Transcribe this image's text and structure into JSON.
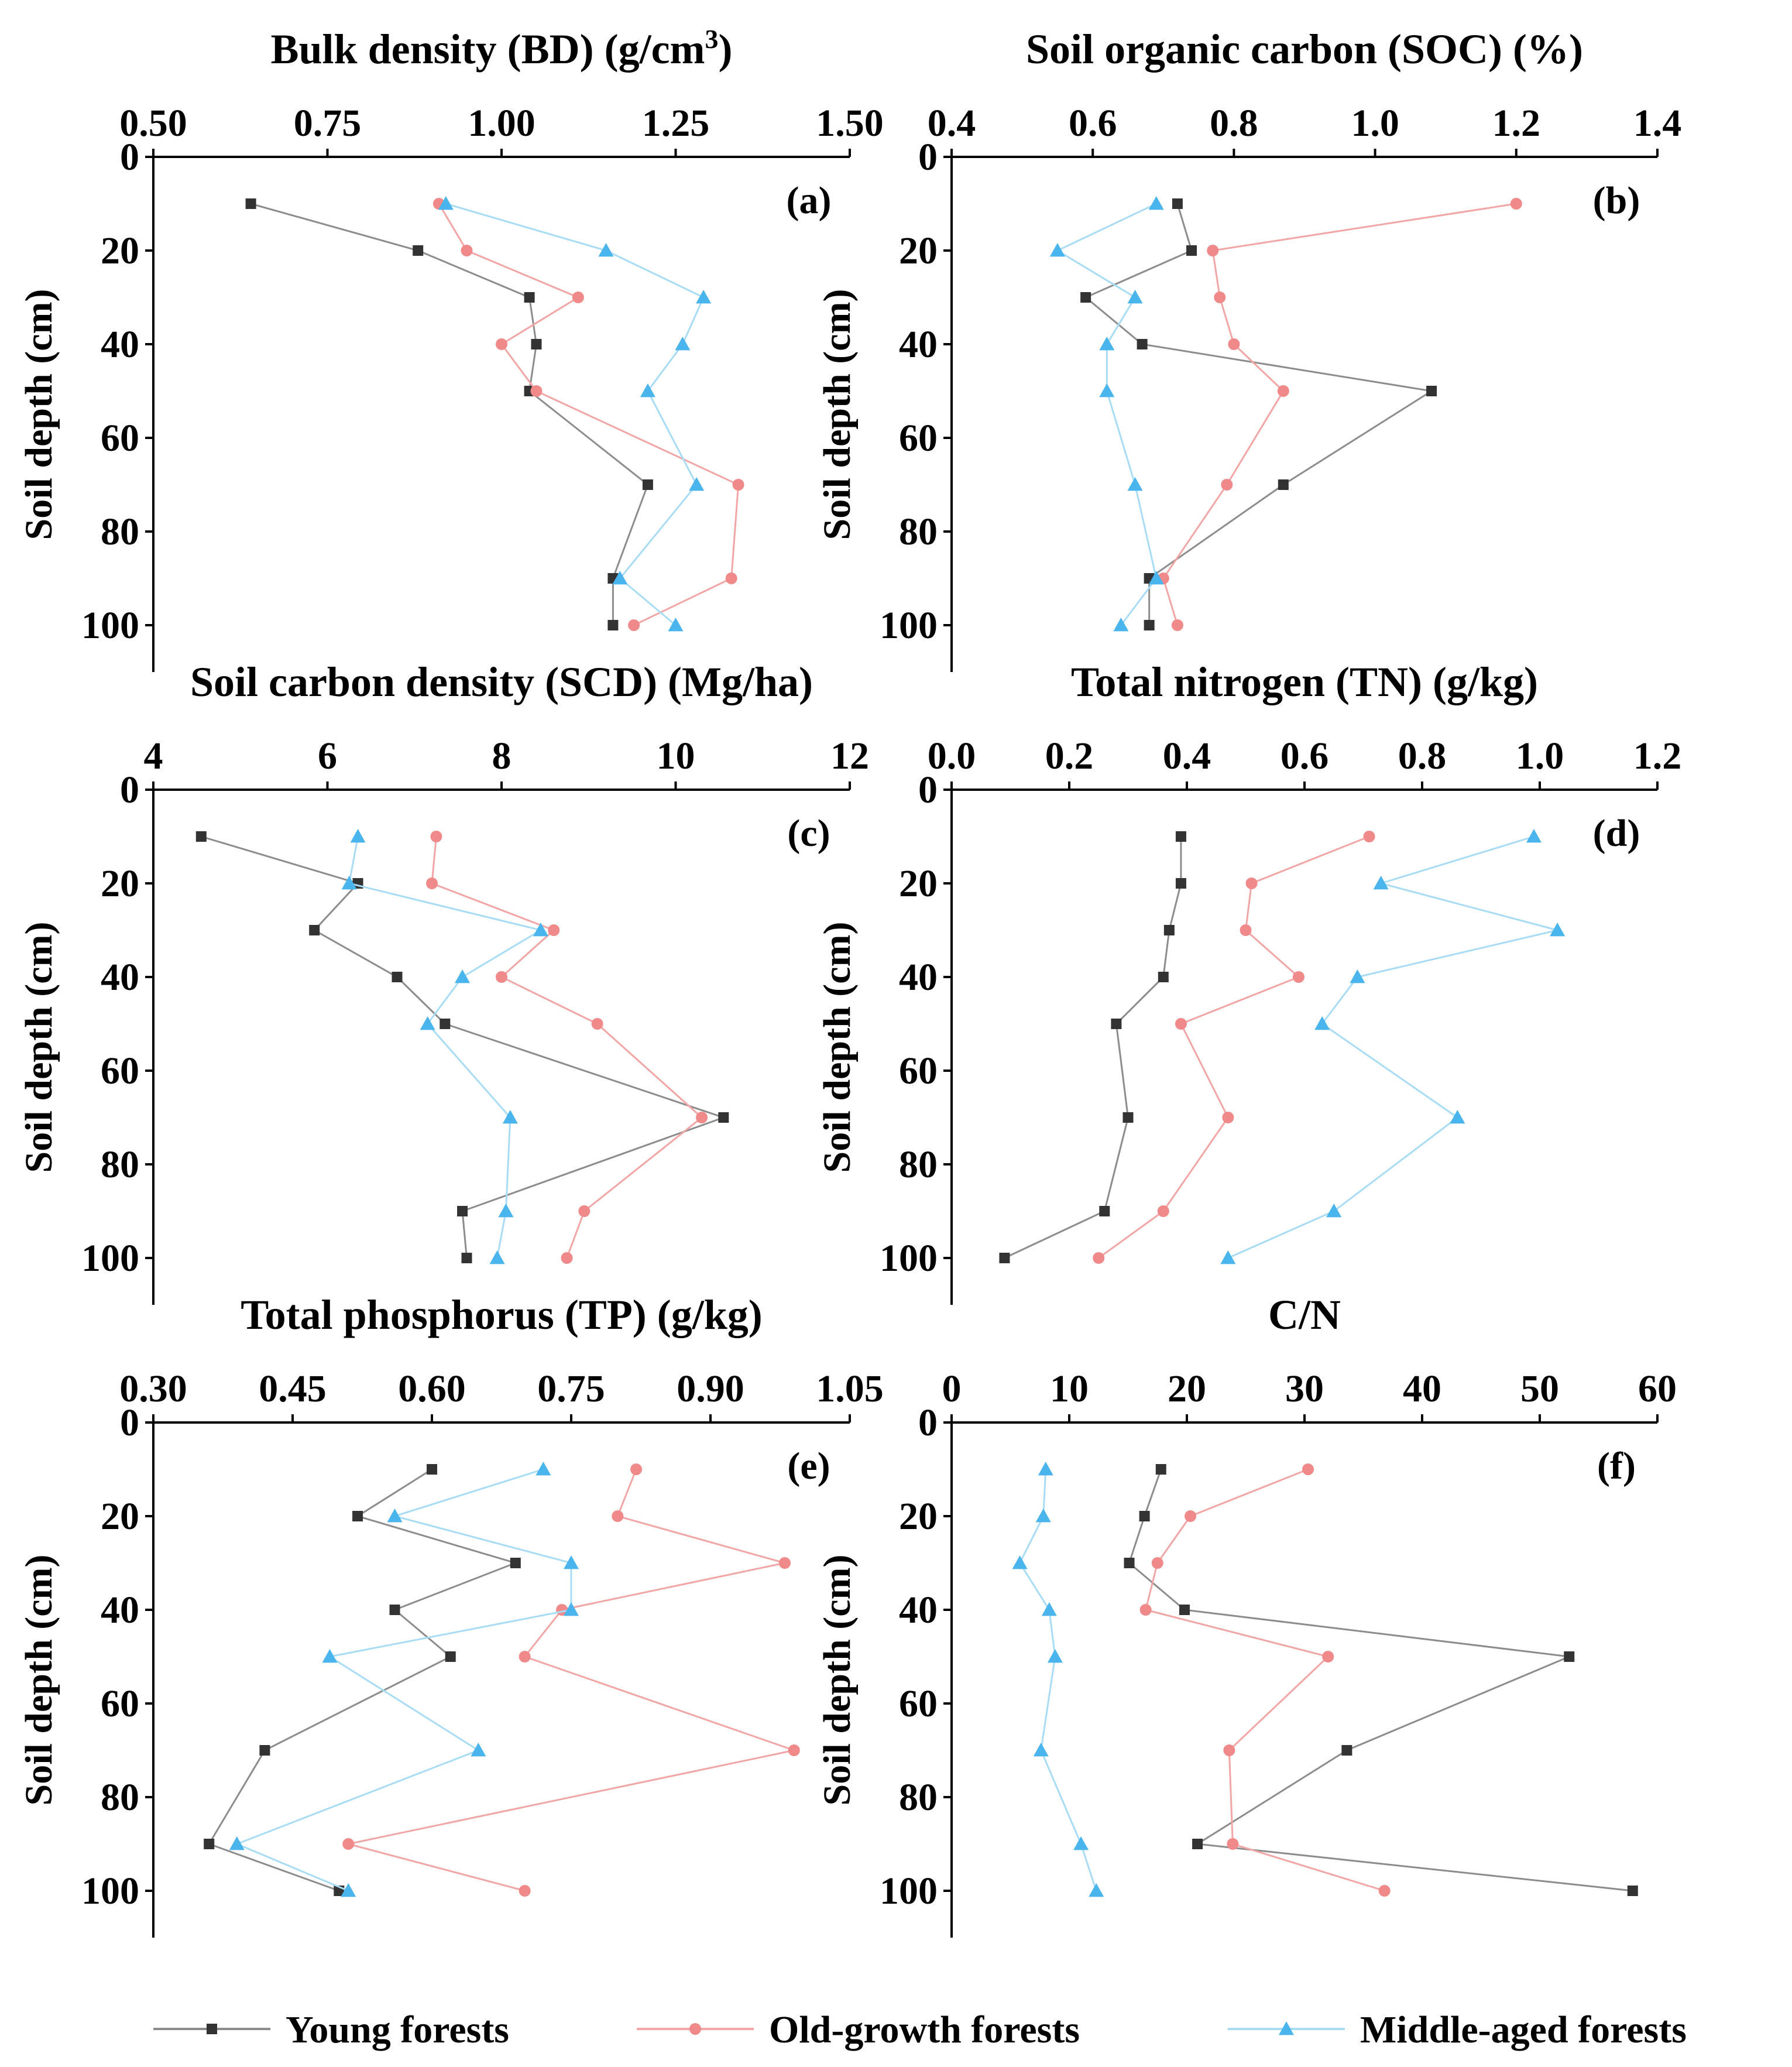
{
  "legend": [
    {
      "key": "young",
      "label": "Young forests",
      "color": "#8c8c8c",
      "marker_color": "#333333",
      "marker": "square"
    },
    {
      "key": "old",
      "label": "Old-growth forests",
      "color": "#f2a5a5",
      "marker_color": "#f08a8a",
      "marker": "circle"
    },
    {
      "key": "middle",
      "label": "Middle-aged forests",
      "color": "#a8dcf5",
      "marker_color": "#4ab4ec",
      "marker": "triangle"
    }
  ],
  "chart_data": [
    {
      "id": "a",
      "type": "line",
      "letter": "(a)",
      "title": "Bulk density (BD) (g/cm",
      "title_sup": "3",
      "title_suffix": ")",
      "ylabel": "Soil depth (cm)",
      "xlim": [
        0.5,
        1.5
      ],
      "ylim": [
        0,
        110
      ],
      "xticks": [
        "0.50",
        "0.75",
        "1.00",
        "1.25",
        "1.50"
      ],
      "xtick_values": [
        0.5,
        0.75,
        1.0,
        1.25,
        1.5
      ],
      "yticks": [
        "0",
        "20",
        "40",
        "60",
        "80",
        "100"
      ],
      "ytick_values": [
        0,
        20,
        40,
        60,
        80,
        100
      ],
      "depth": [
        10,
        20,
        30,
        40,
        50,
        70,
        90,
        100
      ],
      "series": [
        {
          "key": "young",
          "x": [
            0.64,
            0.88,
            1.04,
            1.05,
            1.04,
            1.21,
            1.16,
            1.16
          ]
        },
        {
          "key": "old",
          "x": [
            0.91,
            0.95,
            1.11,
            1.0,
            1.05,
            1.34,
            1.33,
            1.19
          ]
        },
        {
          "key": "middle",
          "x": [
            0.92,
            1.15,
            1.29,
            1.26,
            1.21,
            1.28,
            1.17,
            1.25
          ]
        }
      ]
    },
    {
      "id": "b",
      "type": "line",
      "letter": "(b)",
      "title": "Soil organic carbon (SOC) (%)",
      "ylabel": "Soil depth (cm)",
      "xlim": [
        0.4,
        1.4
      ],
      "ylim": [
        0,
        110
      ],
      "xticks": [
        "0.4",
        "0.6",
        "0.8",
        "1.0",
        "1.2",
        "1.4"
      ],
      "xtick_values": [
        0.4,
        0.6,
        0.8,
        1.0,
        1.2,
        1.4
      ],
      "yticks": [
        "0",
        "20",
        "40",
        "60",
        "80",
        "100"
      ],
      "ytick_values": [
        0,
        20,
        40,
        60,
        80,
        100
      ],
      "depth": [
        10,
        20,
        30,
        40,
        50,
        70,
        90,
        100
      ],
      "series": [
        {
          "key": "young",
          "x": [
            0.72,
            0.74,
            0.59,
            0.67,
            1.08,
            0.87,
            0.68,
            0.68
          ]
        },
        {
          "key": "old",
          "x": [
            1.2,
            0.77,
            0.78,
            0.8,
            0.87,
            0.79,
            0.7,
            0.72
          ]
        },
        {
          "key": "middle",
          "x": [
            0.69,
            0.55,
            0.66,
            0.62,
            0.62,
            0.66,
            0.69,
            0.64
          ]
        }
      ]
    },
    {
      "id": "c",
      "type": "line",
      "letter": "(c)",
      "title": "Soil carbon density (SCD) (Mg/ha)",
      "ylabel": "Soil depth (cm)",
      "xlim": [
        4,
        12
      ],
      "ylim": [
        0,
        110
      ],
      "xticks": [
        "4",
        "6",
        "8",
        "10",
        "12"
      ],
      "xtick_values": [
        4,
        6,
        8,
        10,
        12
      ],
      "yticks": [
        "0",
        "20",
        "40",
        "60",
        "80",
        "100"
      ],
      "ytick_values": [
        0,
        20,
        40,
        60,
        80,
        100
      ],
      "depth": [
        10,
        20,
        30,
        40,
        50,
        70,
        90,
        100
      ],
      "series": [
        {
          "key": "young",
          "x": [
            4.55,
            6.35,
            5.85,
            6.8,
            7.35,
            10.55,
            7.55,
            7.6
          ]
        },
        {
          "key": "old",
          "x": [
            7.25,
            7.2,
            8.6,
            8.0,
            9.1,
            10.3,
            8.95,
            8.75
          ]
        },
        {
          "key": "middle",
          "x": [
            6.35,
            6.25,
            8.45,
            7.55,
            7.15,
            8.1,
            8.05,
            7.95
          ]
        }
      ]
    },
    {
      "id": "d",
      "type": "line",
      "letter": "(d)",
      "title": "Total nitrogen (TN) (g/kg)",
      "ylabel": "Soil depth (cm)",
      "xlim": [
        0,
        1.2
      ],
      "ylim": [
        0,
        110
      ],
      "xticks": [
        "0.0",
        "0.2",
        "0.4",
        "0.6",
        "0.8",
        "1.0",
        "1.2"
      ],
      "xtick_values": [
        0,
        0.2,
        0.4,
        0.6,
        0.8,
        1.0,
        1.2
      ],
      "yticks": [
        "0",
        "20",
        "40",
        "60",
        "80",
        "100"
      ],
      "ytick_values": [
        0,
        20,
        40,
        60,
        80,
        100
      ],
      "depth": [
        10,
        20,
        30,
        40,
        50,
        70,
        90,
        100
      ],
      "series": [
        {
          "key": "young",
          "x": [
            0.39,
            0.39,
            0.37,
            0.36,
            0.28,
            0.3,
            0.26,
            0.09
          ]
        },
        {
          "key": "old",
          "x": [
            0.71,
            0.51,
            0.5,
            0.59,
            0.39,
            0.47,
            0.36,
            0.25
          ]
        },
        {
          "key": "middle",
          "x": [
            0.99,
            0.73,
            1.03,
            0.69,
            0.63,
            0.86,
            0.65,
            0.47
          ]
        }
      ]
    },
    {
      "id": "e",
      "type": "line",
      "letter": "(e)",
      "title": "Total phosphorus (TP) (g/kg)",
      "ylabel": "Soil depth (cm)",
      "xlim": [
        0.3,
        1.05
      ],
      "ylim": [
        0,
        110
      ],
      "xticks": [
        "0.30",
        "0.45",
        "0.60",
        "0.75",
        "0.90",
        "1.05"
      ],
      "xtick_values": [
        0.3,
        0.45,
        0.6,
        0.75,
        0.9,
        1.05
      ],
      "yticks": [
        "0",
        "20",
        "40",
        "60",
        "80",
        "100"
      ],
      "ytick_values": [
        0,
        20,
        40,
        60,
        80,
        100
      ],
      "depth": [
        10,
        20,
        30,
        40,
        50,
        70,
        90,
        100
      ],
      "series": [
        {
          "key": "young",
          "x": [
            0.6,
            0.52,
            0.69,
            0.56,
            0.62,
            0.42,
            0.36,
            0.5
          ]
        },
        {
          "key": "old",
          "x": [
            0.82,
            0.8,
            0.98,
            0.74,
            0.7,
            0.99,
            0.51,
            0.7
          ]
        },
        {
          "key": "middle",
          "x": [
            0.72,
            0.56,
            0.75,
            0.75,
            0.49,
            0.65,
            0.39,
            0.51
          ]
        }
      ]
    },
    {
      "id": "f",
      "type": "line",
      "letter": "(f)",
      "title": "C/N",
      "ylabel": "Soil depth (cm)",
      "xlim": [
        0,
        60
      ],
      "ylim": [
        0,
        110
      ],
      "xticks": [
        "0",
        "10",
        "20",
        "30",
        "40",
        "50",
        "60"
      ],
      "xtick_values": [
        0,
        10,
        20,
        30,
        40,
        50,
        60
      ],
      "yticks": [
        "0",
        "20",
        "40",
        "60",
        "80",
        "100"
      ],
      "ytick_values": [
        0,
        20,
        40,
        60,
        80,
        100
      ],
      "depth": [
        10,
        20,
        30,
        40,
        50,
        70,
        90,
        100
      ],
      "series": [
        {
          "key": "young",
          "x": [
            17.8,
            16.4,
            15.1,
            19.8,
            52.5,
            33.6,
            20.9,
            57.9
          ]
        },
        {
          "key": "old",
          "x": [
            30.3,
            20.3,
            17.5,
            16.5,
            32.0,
            23.6,
            23.9,
            36.8
          ]
        },
        {
          "key": "middle",
          "x": [
            8.0,
            7.8,
            5.8,
            8.3,
            8.8,
            7.6,
            11.0,
            12.3
          ]
        }
      ]
    }
  ]
}
